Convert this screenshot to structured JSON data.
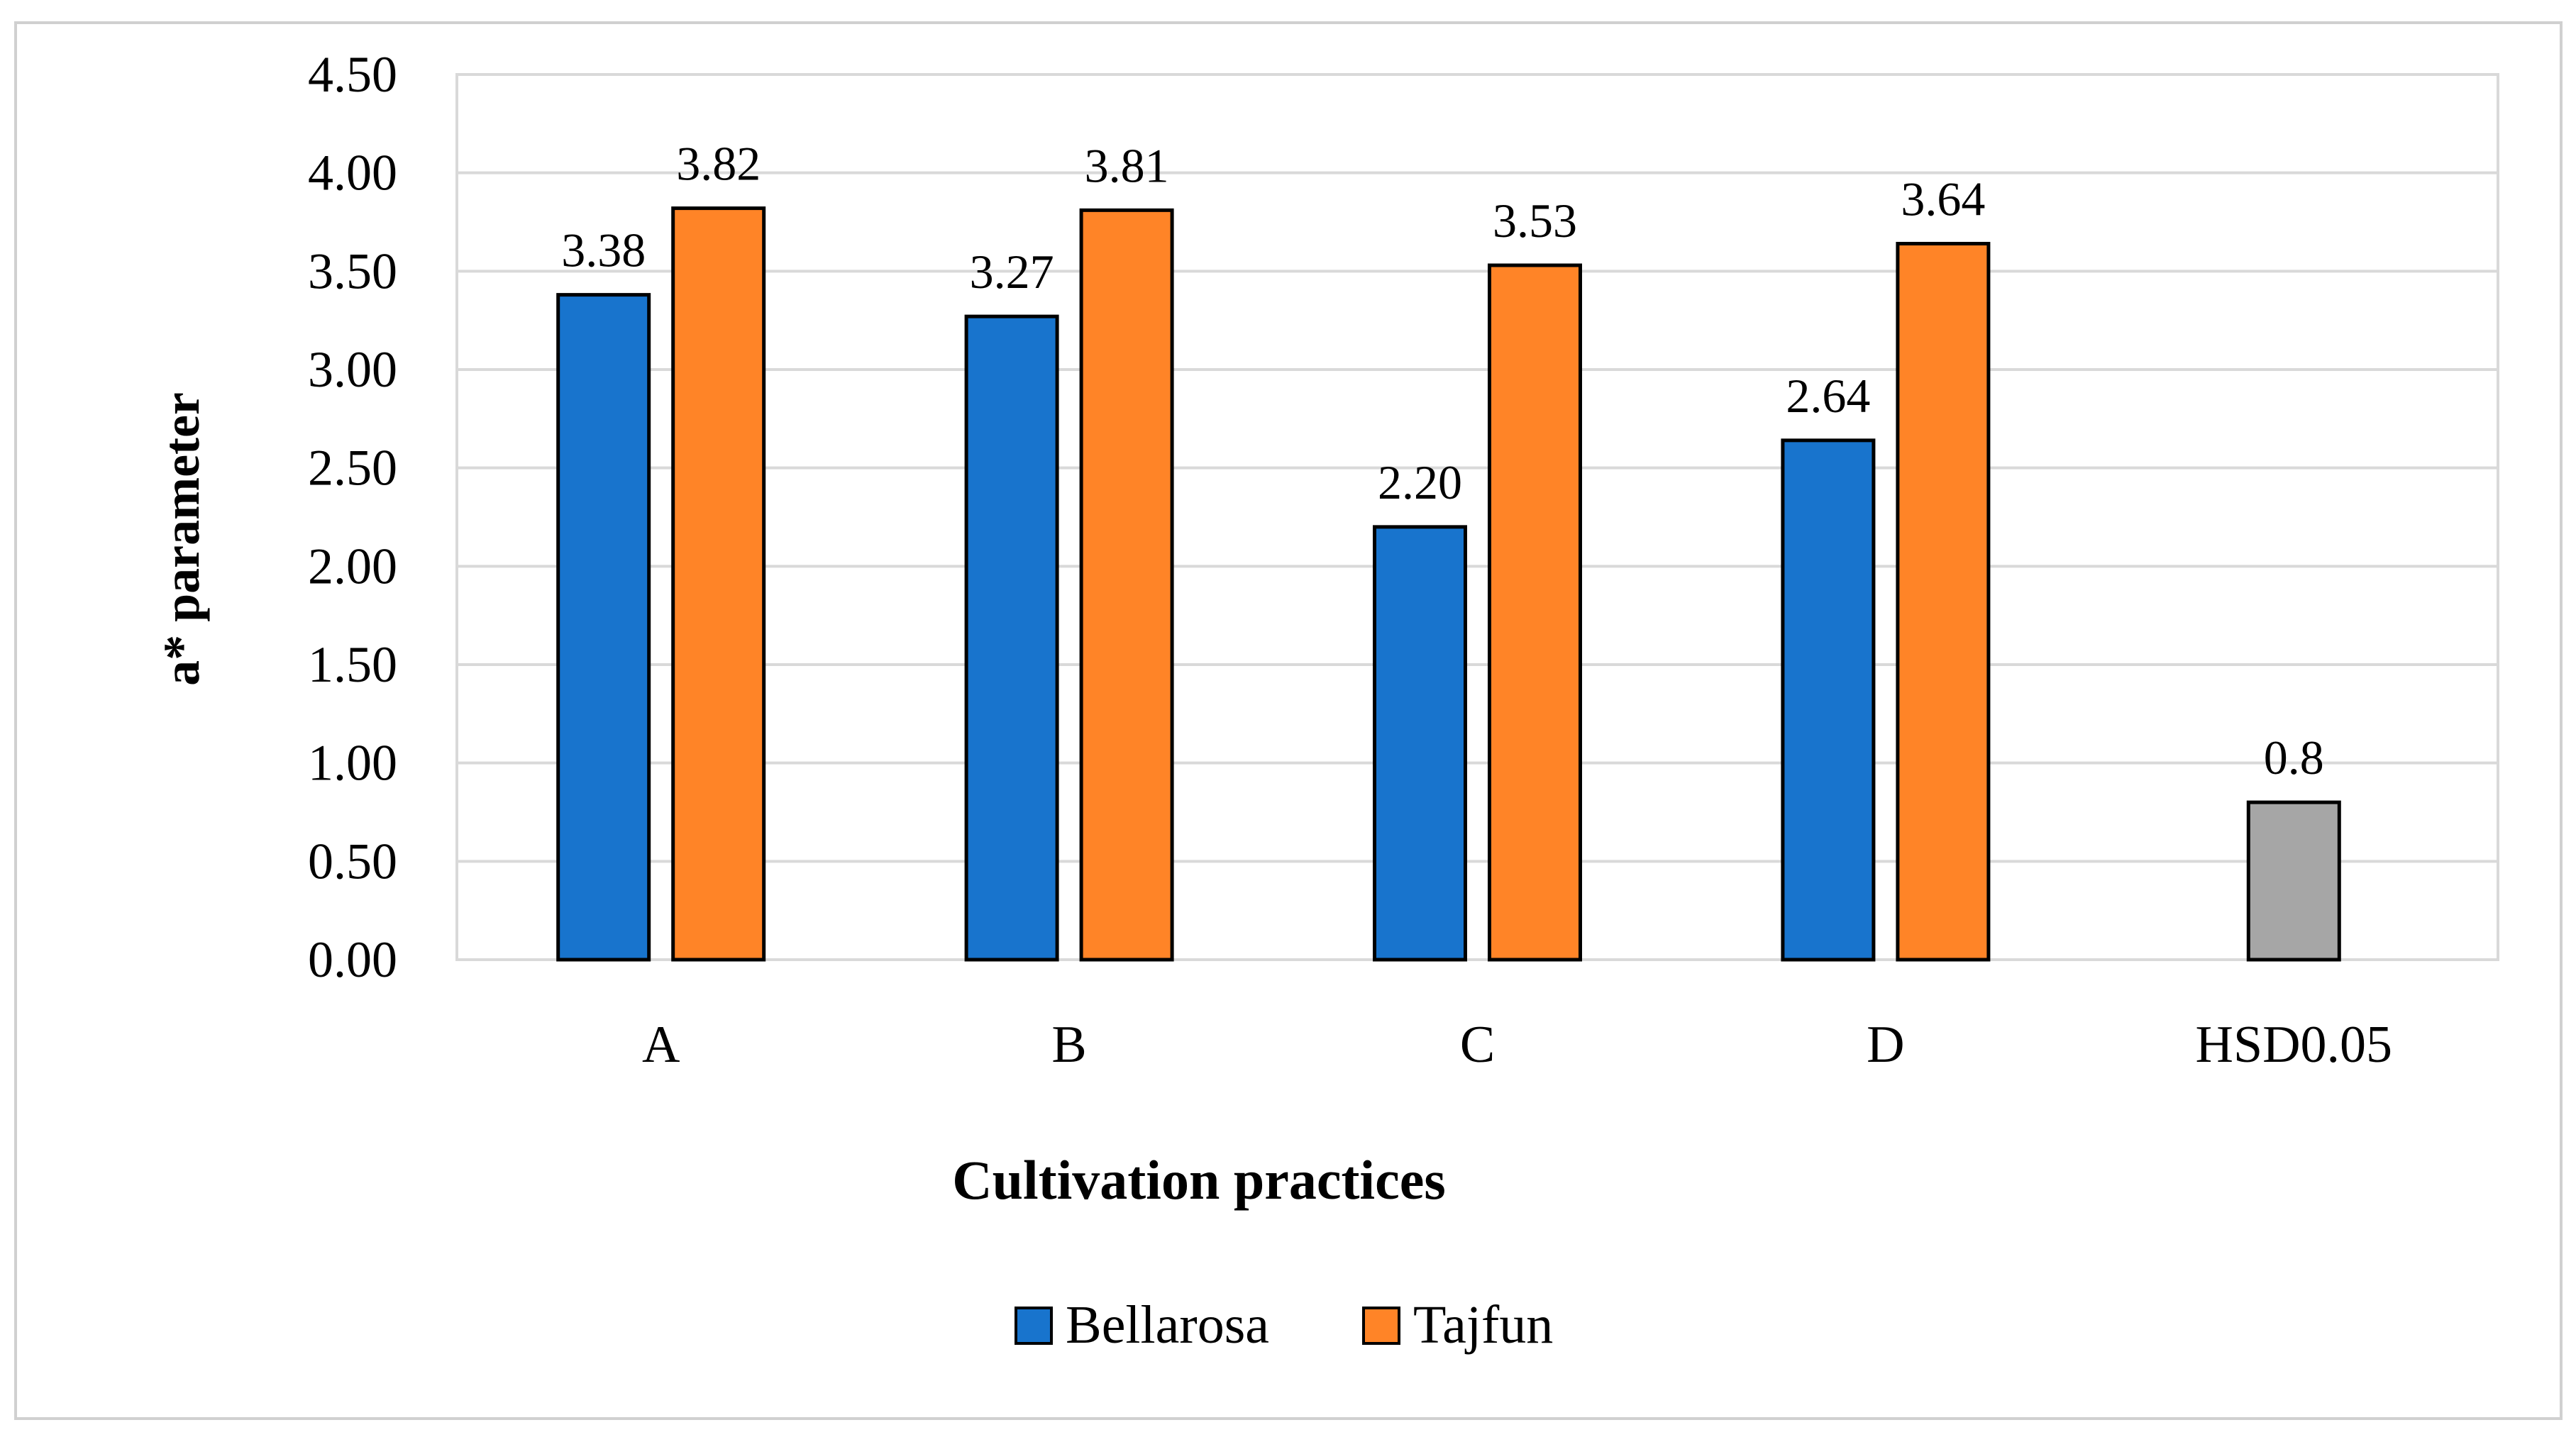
{
  "chart_data": {
    "type": "bar",
    "title": "",
    "xlabel": "Cultivation practices",
    "ylabel": "a* parameter",
    "categories": [
      "A",
      "B",
      "C",
      "D",
      "HSD0.05"
    ],
    "series": [
      {
        "name": "Bellarosa",
        "color": "#1874CD",
        "values": [
          3.38,
          3.27,
          2.2,
          2.64,
          null
        ],
        "labels": [
          "3.38",
          "3.27",
          "2.20",
          "2.64",
          ""
        ]
      },
      {
        "name": "Tajfun",
        "color": "#FF8427",
        "values": [
          3.82,
          3.81,
          3.53,
          3.64,
          null
        ],
        "labels": [
          "3.82",
          "3.81",
          "3.53",
          "3.64",
          ""
        ]
      },
      {
        "name": "HSD0.05",
        "color": "#A6A6A6",
        "values": [
          null,
          null,
          null,
          null,
          0.8
        ],
        "labels": [
          "",
          "",
          "",
          "",
          "0.8"
        ],
        "in_legend": false
      }
    ],
    "ylim": [
      0,
      4.5
    ],
    "yticks": [
      "0.00",
      "0.50",
      "1.00",
      "1.50",
      "2.00",
      "2.50",
      "3.00",
      "3.50",
      "4.00",
      "4.50"
    ],
    "grid": true,
    "legend_position": "bottom",
    "legend": [
      "Bellarosa",
      "Tajfun"
    ]
  }
}
